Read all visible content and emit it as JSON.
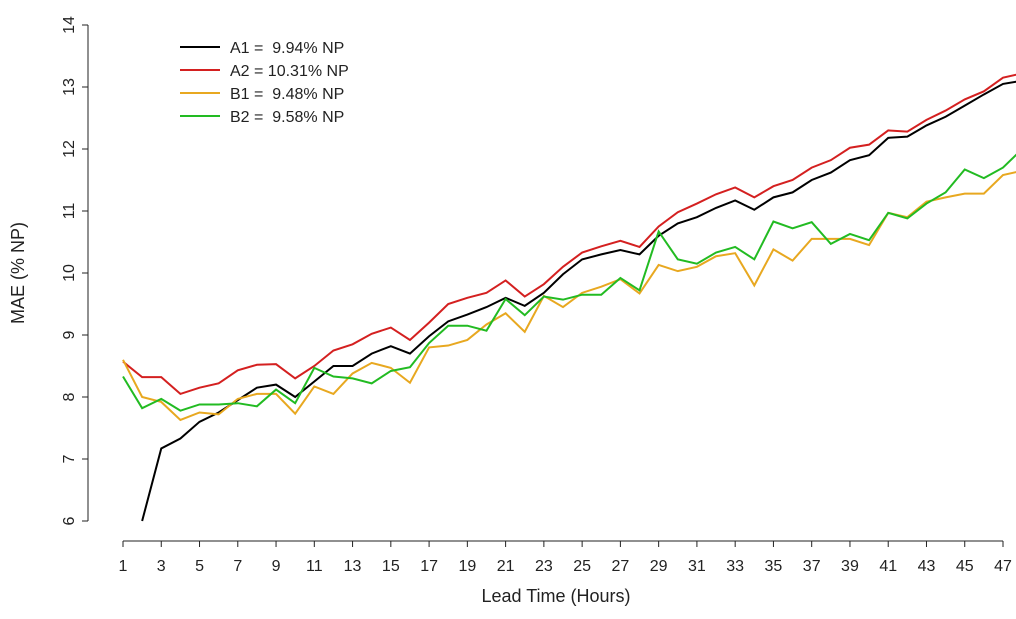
{
  "chart_data": {
    "type": "line",
    "x_label": "Lead Time (Hours)",
    "y_label": "MAE (% NP)",
    "x": [
      1,
      2,
      3,
      4,
      5,
      6,
      7,
      8,
      9,
      10,
      11,
      12,
      13,
      14,
      15,
      16,
      17,
      18,
      19,
      20,
      21,
      22,
      23,
      24,
      25,
      26,
      27,
      28,
      29,
      30,
      31,
      32,
      33,
      34,
      35,
      36,
      37,
      38,
      39,
      40,
      41,
      42,
      43,
      44,
      45,
      46,
      47,
      48
    ],
    "series": [
      {
        "name": "A1 =  9.94% NP",
        "color": "#000000",
        "values": [
          null,
          6.0,
          7.17,
          7.33,
          7.6,
          7.75,
          7.95,
          8.15,
          8.2,
          8.0,
          8.25,
          8.5,
          8.5,
          8.7,
          8.82,
          8.7,
          8.98,
          9.22,
          9.33,
          9.45,
          9.6,
          9.47,
          9.68,
          9.98,
          10.22,
          10.3,
          10.37,
          10.3,
          10.6,
          10.8,
          10.9,
          11.05,
          11.17,
          11.02,
          11.22,
          11.3,
          11.5,
          11.62,
          11.82,
          11.9,
          12.18,
          12.2,
          12.38,
          12.52,
          12.7,
          12.88,
          13.05,
          13.1
        ]
      },
      {
        "name": "A2 = 10.31% NP",
        "color": "#d42020",
        "values": [
          8.57,
          8.32,
          8.32,
          8.05,
          8.15,
          8.22,
          8.43,
          8.52,
          8.53,
          8.3,
          8.5,
          8.75,
          8.85,
          9.02,
          9.12,
          8.92,
          9.2,
          9.5,
          9.6,
          9.68,
          9.88,
          9.62,
          9.82,
          10.1,
          10.33,
          10.43,
          10.52,
          10.42,
          10.75,
          10.98,
          11.12,
          11.27,
          11.38,
          11.22,
          11.4,
          11.5,
          11.7,
          11.82,
          12.02,
          12.07,
          12.3,
          12.28,
          12.47,
          12.62,
          12.8,
          12.93,
          13.15,
          13.22
        ]
      },
      {
        "name": "B1 =  9.48% NP",
        "color": "#e8a820",
        "values": [
          8.6,
          8.0,
          7.92,
          7.63,
          7.75,
          7.72,
          7.97,
          8.05,
          8.05,
          7.73,
          8.17,
          8.05,
          8.38,
          8.55,
          8.47,
          8.23,
          8.8,
          8.83,
          8.92,
          9.17,
          9.35,
          9.05,
          9.63,
          9.45,
          9.68,
          9.78,
          9.9,
          9.67,
          10.13,
          10.03,
          10.1,
          10.27,
          10.32,
          9.8,
          10.38,
          10.2,
          10.55,
          10.55,
          10.55,
          10.45,
          10.97,
          10.9,
          11.15,
          11.22,
          11.28,
          11.28,
          11.58,
          11.65
        ]
      },
      {
        "name": "B2 =  9.58% NP",
        "color": "#22bb22",
        "values": [
          8.33,
          7.82,
          7.97,
          7.78,
          7.88,
          7.88,
          7.9,
          7.85,
          8.12,
          7.9,
          8.47,
          8.33,
          8.3,
          8.22,
          8.42,
          8.48,
          8.87,
          9.15,
          9.15,
          9.07,
          9.58,
          9.32,
          9.62,
          9.57,
          9.65,
          9.65,
          9.92,
          9.72,
          10.67,
          10.22,
          10.15,
          10.33,
          10.42,
          10.22,
          10.83,
          10.72,
          10.82,
          10.47,
          10.63,
          10.53,
          10.97,
          10.88,
          11.12,
          11.3,
          11.67,
          11.53,
          11.7,
          12.0
        ]
      }
    ],
    "xlim": [
      1,
      48
    ],
    "ylim": [
      6,
      14
    ],
    "xticks": [
      1,
      3,
      5,
      7,
      9,
      11,
      13,
      15,
      17,
      19,
      21,
      23,
      25,
      27,
      29,
      31,
      33,
      35,
      37,
      39,
      41,
      43,
      45,
      47
    ],
    "yticks": [
      6,
      7,
      8,
      9,
      10,
      11,
      12,
      13,
      14
    ],
    "legend": "upper left",
    "grid": false
  }
}
